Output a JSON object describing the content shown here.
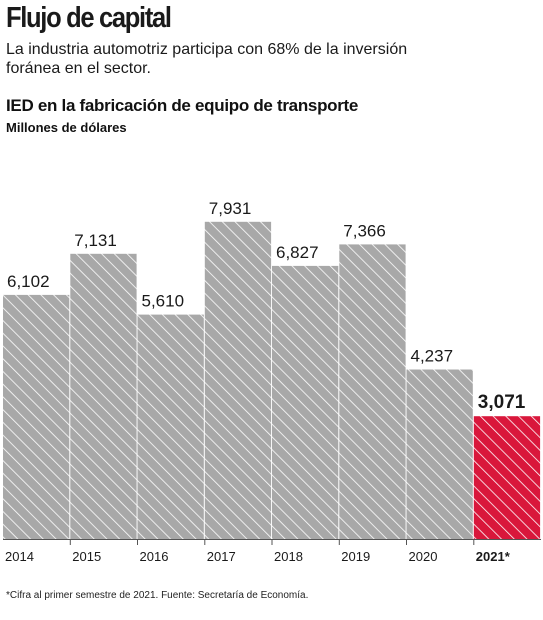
{
  "header": {
    "title": "Flujo de capital",
    "subtitle": "La industria automotriz participa con 68% de la inversión foránea en el sector."
  },
  "footnote": "*Cifra al primer semestre de 2021. Fuente: Secretaría de Economía.",
  "colors": {
    "bar": "#a8a8a8",
    "bar_hatch": "#ffffff",
    "highlight": "#d9173b",
    "text": "#1a1a1a"
  },
  "chart_data": {
    "type": "bar",
    "title": "IED en la fabricación de equipo de transporte",
    "ylabel": "Millones de dólares",
    "categories": [
      "2014",
      "2015",
      "2016",
      "2017",
      "2018",
      "2019",
      "2020",
      "2021*"
    ],
    "values": [
      6102,
      7131,
      5610,
      7931,
      6827,
      7366,
      4237,
      3071
    ],
    "value_labels": [
      "6,102",
      "7,131",
      "5,610",
      "7,931",
      "6,827",
      "7,366",
      "4,237",
      "3,071"
    ],
    "highlight_index": 7,
    "ylim": [
      0,
      10000
    ],
    "grid": false,
    "legend": "none"
  }
}
